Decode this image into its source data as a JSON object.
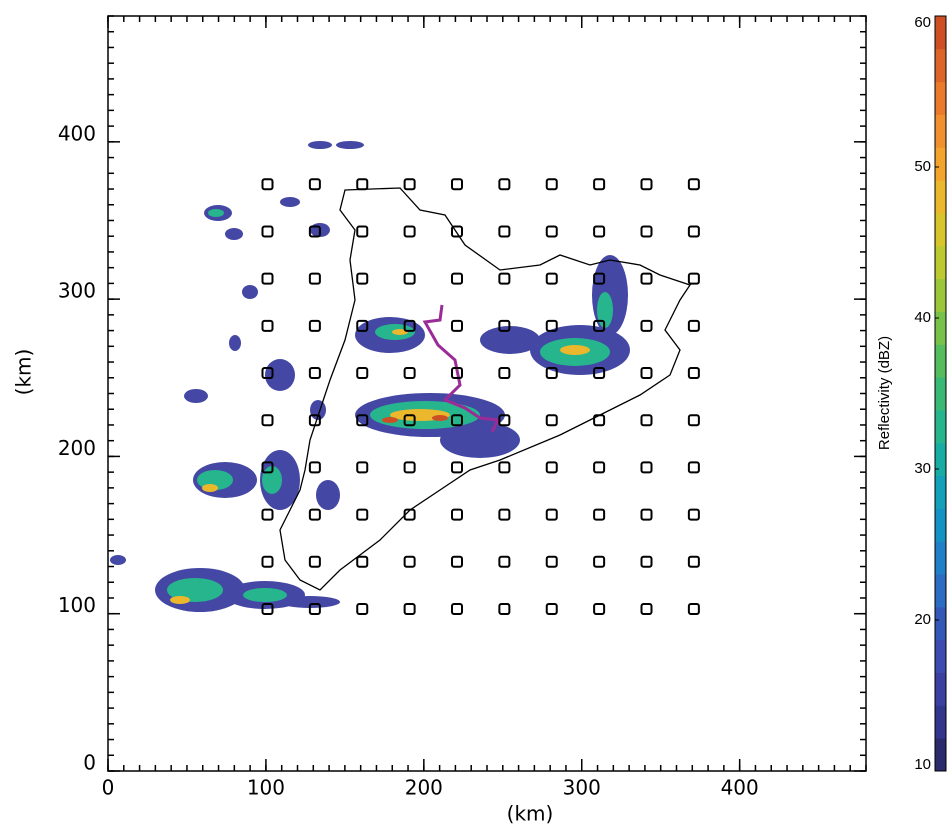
{
  "chart_data": {
    "type": "station-grid",
    "xlabel": "(km)",
    "ylabel": "(km)",
    "xlim": [
      0,
      480
    ],
    "ylim": [
      0,
      480
    ],
    "xticks": [
      0,
      100,
      200,
      300,
      400
    ],
    "yticks": [
      0,
      100,
      200,
      300,
      400
    ],
    "minor_tick_step": 10,
    "stations": {
      "x": [
        101,
        131,
        161,
        191,
        221,
        251,
        281,
        311,
        341,
        371
      ],
      "y": [
        103,
        133,
        163,
        193,
        223,
        253,
        283,
        313,
        343,
        373
      ],
      "color": "#000000"
    },
    "colorbar": {
      "label": "Reflectivity (dBZ)",
      "lim": [
        10,
        60
      ],
      "ticks": [
        10,
        20,
        30,
        40,
        50,
        60
      ],
      "colors": [
        "#2b2a6b",
        "#32358c",
        "#3a3fa0",
        "#3d4bb0",
        "#3558b8",
        "#2c6cc2",
        "#1f80c8",
        "#1592c4",
        "#14a0b8",
        "#19aca4",
        "#27b58e",
        "#3ab876",
        "#55bd5e",
        "#78c24a",
        "#9bc63a",
        "#bcc930",
        "#d8c52c",
        "#ebb72c",
        "#f3a42e",
        "#f1902e",
        "#ea7a2c",
        "#de6529",
        "#cf4f25"
      ]
    }
  }
}
